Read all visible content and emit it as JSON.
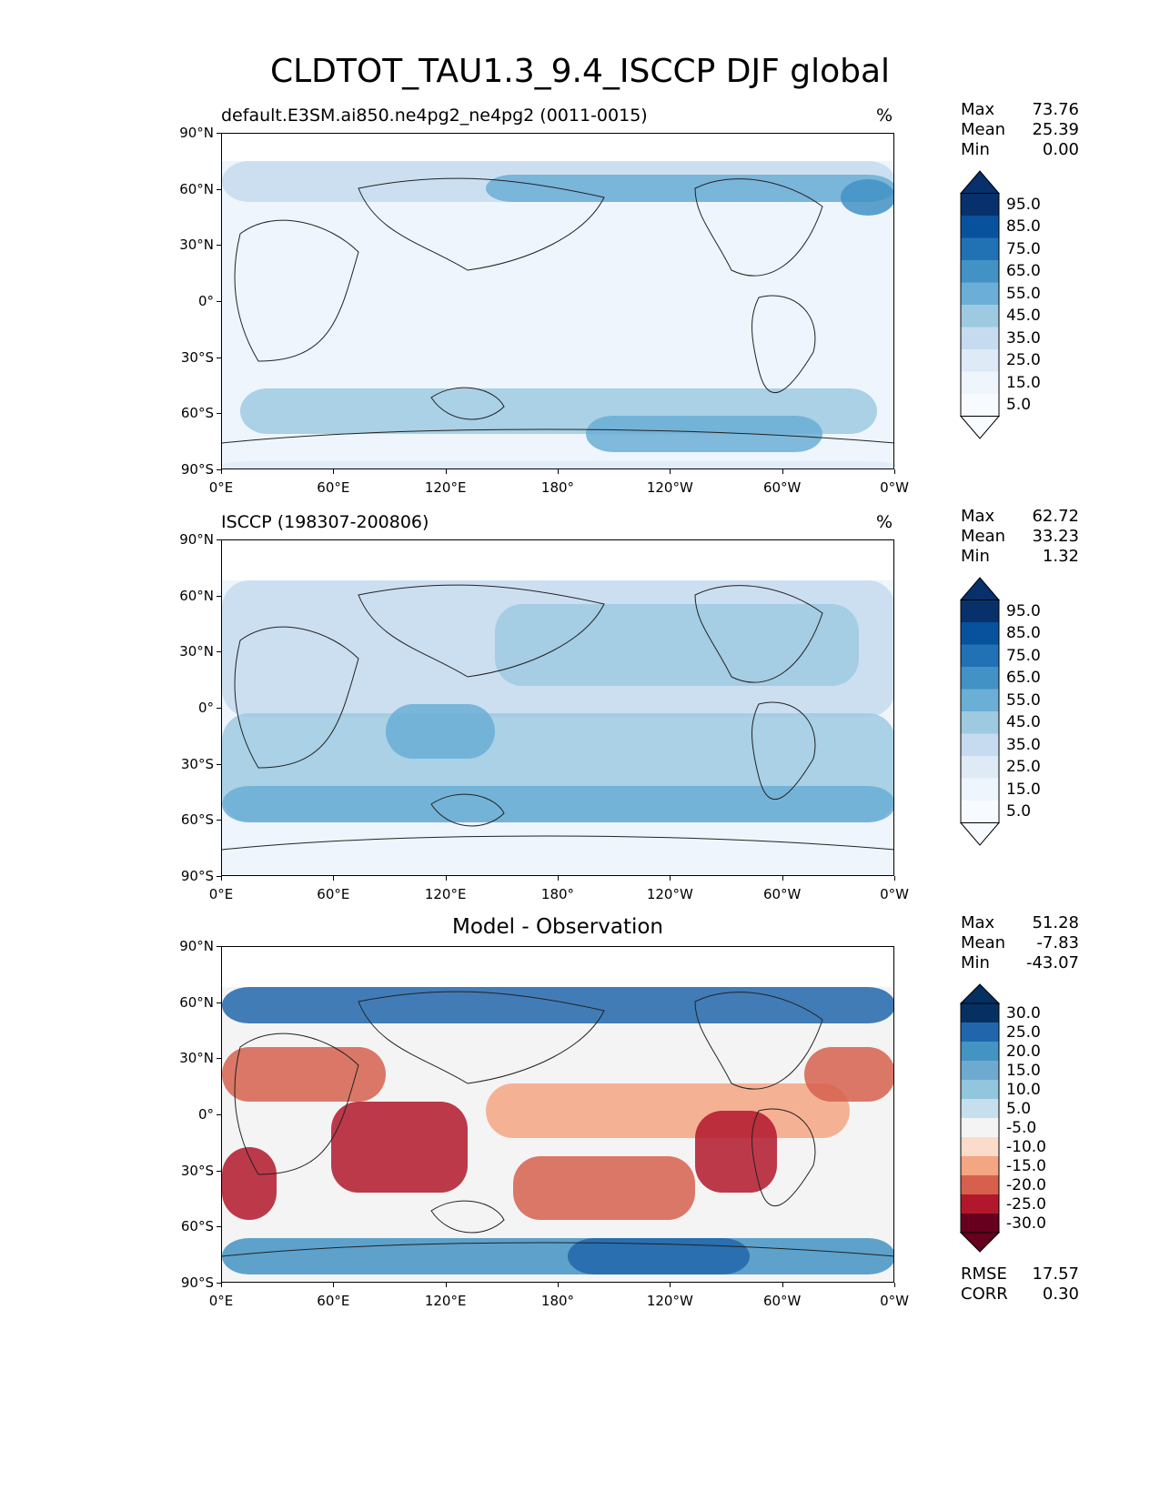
{
  "figure": {
    "title": "CLDTOT_TAU1.3_9.4_ISCCP DJF global",
    "panels": [
      {
        "title": "default.E3SM.ai850.ne4pg2_ne4pg2 (0011-0015)",
        "units": "%",
        "stats": [
          {
            "label": "Max",
            "value": "73.76"
          },
          {
            "label": "Mean",
            "value": "25.39"
          },
          {
            "label": "Min",
            "value": "0.00"
          }
        ],
        "colorbar": {
          "labels": [
            "95.0",
            "85.0",
            "75.0",
            "65.0",
            "55.0",
            "45.0",
            "35.0",
            "25.0",
            "15.0",
            "5.0"
          ],
          "colors": [
            "#08306b",
            "#08519c",
            "#2171b5",
            "#4292c6",
            "#6baed6",
            "#9ecae1",
            "#c6dbef",
            "#deebf7",
            "#eef5fc",
            "#f7fbff"
          ]
        }
      },
      {
        "title": "ISCCP (198307-200806)",
        "units": "%",
        "stats": [
          {
            "label": "Max",
            "value": "62.72"
          },
          {
            "label": "Mean",
            "value": "33.23"
          },
          {
            "label": "Min",
            "value": "1.32"
          }
        ],
        "colorbar": {
          "labels": [
            "95.0",
            "85.0",
            "75.0",
            "65.0",
            "55.0",
            "45.0",
            "35.0",
            "25.0",
            "15.0",
            "5.0"
          ],
          "colors": [
            "#08306b",
            "#08519c",
            "#2171b5",
            "#4292c6",
            "#6baed6",
            "#9ecae1",
            "#c6dbef",
            "#deebf7",
            "#eef5fc",
            "#f7fbff"
          ]
        }
      },
      {
        "title": "Model - Observation",
        "units": "",
        "stats": [
          {
            "label": "Max",
            "value": "51.28"
          },
          {
            "label": "Mean",
            "value": "-7.83"
          },
          {
            "label": "Min",
            "value": "-43.07"
          }
        ],
        "metrics": [
          {
            "label": "RMSE",
            "value": "17.57"
          },
          {
            "label": "CORR",
            "value": "0.30"
          }
        ],
        "colorbar": {
          "labels": [
            "30.0",
            "25.0",
            "20.0",
            "15.0",
            "10.0",
            "5.0",
            "-5.0",
            "-10.0",
            "-15.0",
            "-20.0",
            "-25.0",
            "-30.0"
          ],
          "colors": [
            "#053061",
            "#2166ac",
            "#4393c3",
            "#6eaad0",
            "#92c5de",
            "#c5dfed",
            "#f4f4f4",
            "#fbdccb",
            "#f4a582",
            "#d6604d",
            "#b2182b",
            "#67001f"
          ]
        }
      }
    ],
    "axes": {
      "yticks": [
        "90°N",
        "60°N",
        "30°N",
        "0°",
        "30°S",
        "60°S",
        "90°S"
      ],
      "xticks": [
        "0°E",
        "60°E",
        "120°E",
        "180°",
        "120°W",
        "60°W",
        "0°W"
      ]
    }
  }
}
